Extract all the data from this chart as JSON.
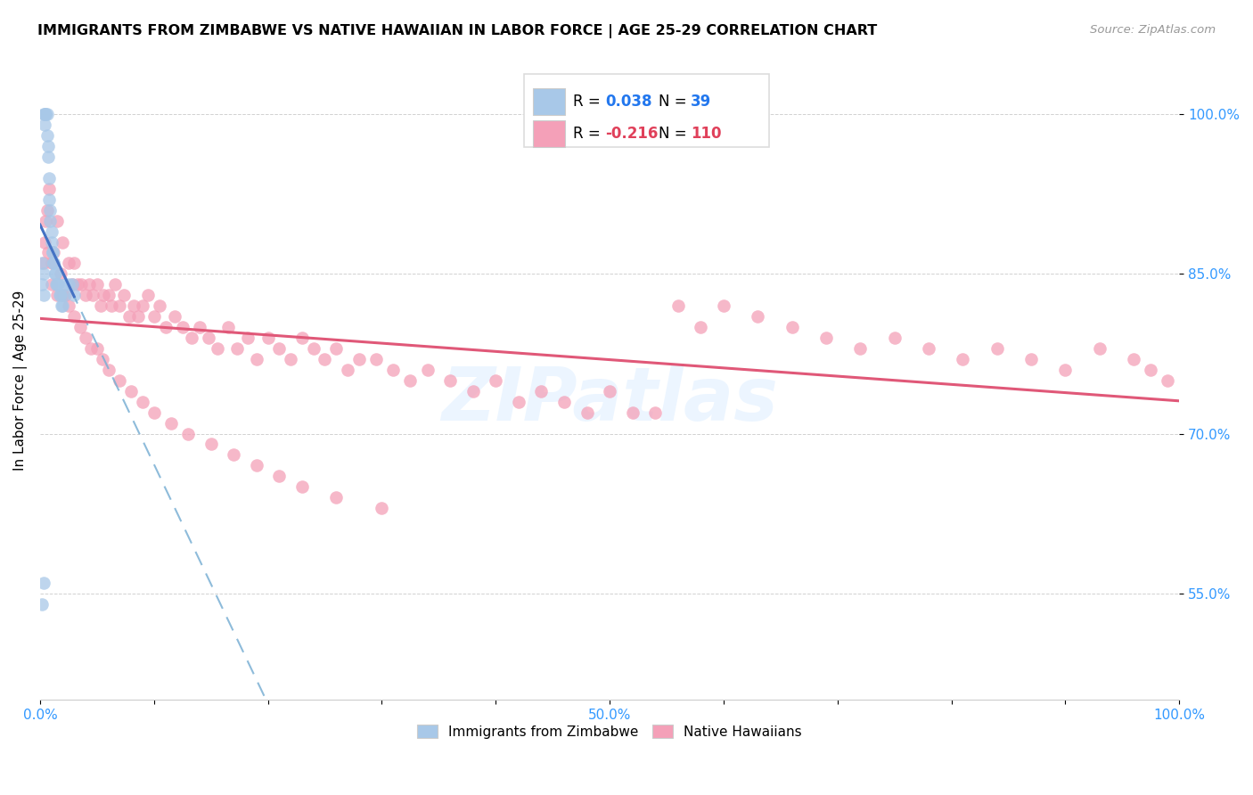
{
  "title": "IMMIGRANTS FROM ZIMBABWE VS NATIVE HAWAIIAN IN LABOR FORCE | AGE 25-29 CORRELATION CHART",
  "source": "Source: ZipAtlas.com",
  "ylabel": "In Labor Force | Age 25-29",
  "x_min": 0.0,
  "x_max": 1.0,
  "y_min": 0.45,
  "y_max": 1.05,
  "x_tick_pos": [
    0.0,
    0.1,
    0.2,
    0.3,
    0.4,
    0.5,
    0.6,
    0.7,
    0.8,
    0.9,
    1.0
  ],
  "x_tick_labels": [
    "0.0%",
    "",
    "",
    "",
    "",
    "50.0%",
    "",
    "",
    "",
    "",
    "100.0%"
  ],
  "y_ticks": [
    0.55,
    0.7,
    0.85,
    1.0
  ],
  "y_tick_labels": [
    "55.0%",
    "70.0%",
    "85.0%",
    "100.0%"
  ],
  "r_zimbabwe": 0.038,
  "n_zimbabwe": 39,
  "r_hawaiian": -0.216,
  "n_hawaiian": 110,
  "legend_labels": [
    "Immigrants from Zimbabwe",
    "Native Hawaiians"
  ],
  "color_zimbabwe": "#a8c8e8",
  "color_hawaiian": "#f4a0b8",
  "trendline_zimbabwe_color": "#4472c4",
  "trendline_hawaiian_color": "#e05878",
  "trendline_dashed_color": "#7ab0d4",
  "watermark": "ZIPatlas",
  "zimbabwe_x": [
    0.002,
    0.003,
    0.003,
    0.004,
    0.004,
    0.005,
    0.005,
    0.006,
    0.006,
    0.007,
    0.007,
    0.008,
    0.008,
    0.009,
    0.009,
    0.01,
    0.01,
    0.011,
    0.011,
    0.012,
    0.012,
    0.013,
    0.013,
    0.014,
    0.015,
    0.016,
    0.017,
    0.018,
    0.019,
    0.02,
    0.021,
    0.022,
    0.025,
    0.028,
    0.03,
    0.002,
    0.003,
    0.002,
    0.003
  ],
  "zimbabwe_y": [
    0.54,
    0.56,
    1.0,
    1.0,
    0.99,
    1.0,
    1.0,
    1.0,
    0.98,
    0.97,
    0.96,
    0.94,
    0.92,
    0.91,
    0.9,
    0.89,
    0.88,
    0.87,
    0.87,
    0.86,
    0.86,
    0.85,
    0.85,
    0.84,
    0.84,
    0.84,
    0.83,
    0.83,
    0.82,
    0.82,
    0.83,
    0.84,
    0.84,
    0.84,
    0.83,
    0.86,
    0.85,
    0.84,
    0.83
  ],
  "hawaiian_x": [
    0.003,
    0.004,
    0.005,
    0.006,
    0.007,
    0.008,
    0.01,
    0.012,
    0.015,
    0.018,
    0.02,
    0.022,
    0.025,
    0.028,
    0.03,
    0.033,
    0.036,
    0.04,
    0.043,
    0.046,
    0.05,
    0.053,
    0.056,
    0.06,
    0.063,
    0.066,
    0.07,
    0.074,
    0.078,
    0.082,
    0.086,
    0.09,
    0.095,
    0.1,
    0.105,
    0.11,
    0.118,
    0.125,
    0.133,
    0.14,
    0.148,
    0.156,
    0.165,
    0.173,
    0.182,
    0.19,
    0.2,
    0.21,
    0.22,
    0.23,
    0.24,
    0.25,
    0.26,
    0.27,
    0.28,
    0.295,
    0.31,
    0.325,
    0.34,
    0.36,
    0.38,
    0.4,
    0.42,
    0.44,
    0.46,
    0.48,
    0.5,
    0.52,
    0.54,
    0.56,
    0.58,
    0.6,
    0.63,
    0.66,
    0.69,
    0.72,
    0.75,
    0.78,
    0.81,
    0.84,
    0.87,
    0.9,
    0.93,
    0.96,
    0.975,
    0.99,
    0.01,
    0.015,
    0.02,
    0.025,
    0.03,
    0.035,
    0.04,
    0.045,
    0.05,
    0.055,
    0.06,
    0.07,
    0.08,
    0.09,
    0.1,
    0.115,
    0.13,
    0.15,
    0.17,
    0.19,
    0.21,
    0.23,
    0.26,
    0.3
  ],
  "hawaiian_y": [
    0.86,
    0.88,
    0.9,
    0.91,
    0.87,
    0.93,
    0.86,
    0.87,
    0.9,
    0.85,
    0.88,
    0.83,
    0.86,
    0.84,
    0.86,
    0.84,
    0.84,
    0.83,
    0.84,
    0.83,
    0.84,
    0.82,
    0.83,
    0.83,
    0.82,
    0.84,
    0.82,
    0.83,
    0.81,
    0.82,
    0.81,
    0.82,
    0.83,
    0.81,
    0.82,
    0.8,
    0.81,
    0.8,
    0.79,
    0.8,
    0.79,
    0.78,
    0.8,
    0.78,
    0.79,
    0.77,
    0.79,
    0.78,
    0.77,
    0.79,
    0.78,
    0.77,
    0.78,
    0.76,
    0.77,
    0.77,
    0.76,
    0.75,
    0.76,
    0.75,
    0.74,
    0.75,
    0.73,
    0.74,
    0.73,
    0.72,
    0.74,
    0.72,
    0.72,
    0.82,
    0.8,
    0.82,
    0.81,
    0.8,
    0.79,
    0.78,
    0.79,
    0.78,
    0.77,
    0.78,
    0.77,
    0.76,
    0.78,
    0.77,
    0.76,
    0.75,
    0.84,
    0.83,
    0.83,
    0.82,
    0.81,
    0.8,
    0.79,
    0.78,
    0.78,
    0.77,
    0.76,
    0.75,
    0.74,
    0.73,
    0.72,
    0.71,
    0.7,
    0.69,
    0.68,
    0.67,
    0.66,
    0.65,
    0.64,
    0.63
  ]
}
